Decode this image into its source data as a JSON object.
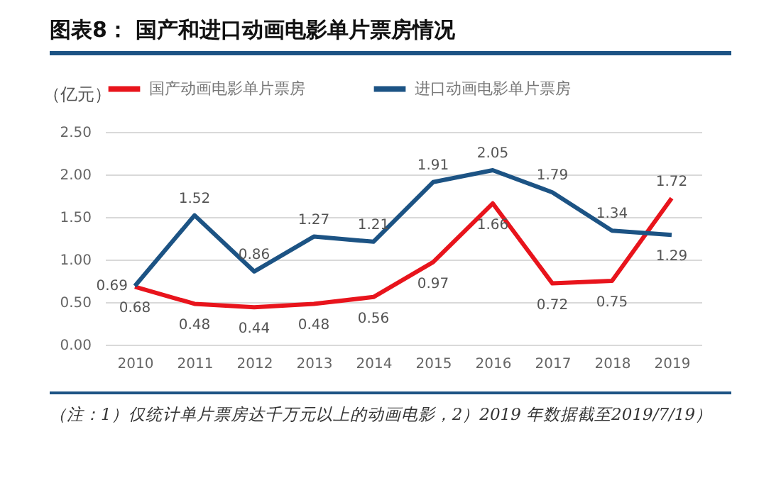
{
  "chart_data": {
    "type": "line",
    "title": "图表8：  国产和进口动画电影单片票房情况",
    "ylabel": "（亿元）",
    "categories": [
      "2010",
      "2011",
      "2012",
      "2013",
      "2014",
      "2015",
      "2016",
      "2017",
      "2018",
      "2019"
    ],
    "series": [
      {
        "name": "国产动画电影单片票房",
        "color": "#e8141c",
        "values": [
          0.68,
          0.48,
          0.44,
          0.48,
          0.56,
          0.97,
          1.66,
          0.72,
          0.75,
          1.72
        ]
      },
      {
        "name": "进口动画电影单片票房",
        "color": "#1c5384",
        "values": [
          0.69,
          1.52,
          0.86,
          1.27,
          1.21,
          1.91,
          2.05,
          1.79,
          1.34,
          1.29
        ]
      }
    ],
    "ylim": [
      0,
      2.5
    ],
    "yticks": [
      {
        "value": 0,
        "label": "0.00"
      },
      {
        "value": 0.5,
        "label": "0.50"
      },
      {
        "value": 1,
        "label": "1.00"
      },
      {
        "value": 1.5,
        "label": "1.50"
      },
      {
        "value": 2,
        "label": "2.00"
      },
      {
        "value": 2.5,
        "label": "2.50"
      }
    ],
    "grid": "y",
    "legend": "top",
    "data_labels": true,
    "line_style": "solid",
    "marker": "none",
    "annotations": [
      "（注：1）仅统计单片票房达千万元以上的动画电影，2）2019 年数据截至2019/7/19）"
    ]
  }
}
